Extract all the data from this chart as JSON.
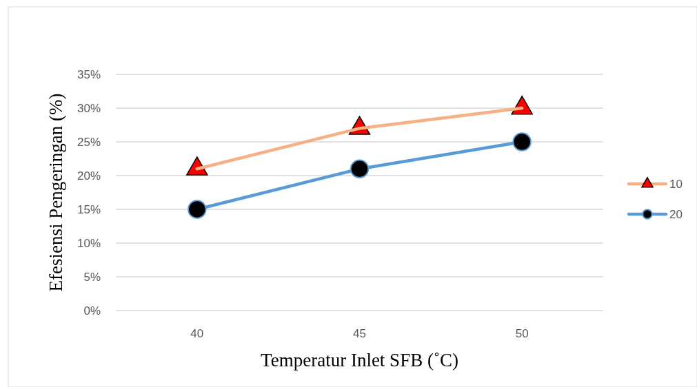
{
  "chart_data": {
    "type": "line",
    "xlabel": "Temperatur Inlet SFB (˚C)",
    "ylabel": "Efesiensi Pengeringan (%)",
    "categories": [
      "40",
      "45",
      "50"
    ],
    "series": [
      {
        "name": "10",
        "color": "#f4b183",
        "marker": "triangle",
        "values": [
          21,
          27,
          30
        ]
      },
      {
        "name": "20",
        "color": "#5b9bd5",
        "marker": "circle",
        "values": [
          15,
          21,
          25
        ]
      }
    ],
    "ylim": [
      0,
      35
    ],
    "yticks": [
      {
        "value": 0,
        "label": "0%"
      },
      {
        "value": 5,
        "label": "5%"
      },
      {
        "value": 10,
        "label": "10%"
      },
      {
        "value": 15,
        "label": "15%"
      },
      {
        "value": 20,
        "label": "20%"
      },
      {
        "value": 25,
        "label": "25%"
      },
      {
        "value": 30,
        "label": "30%"
      },
      {
        "value": 35,
        "label": "35%"
      }
    ],
    "grid": "y",
    "legend": "right"
  }
}
